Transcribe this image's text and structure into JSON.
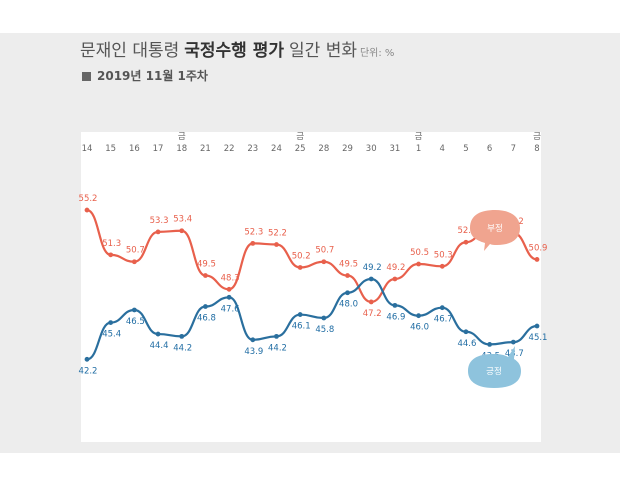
{
  "title": {
    "part1": "문재인 대통령",
    "part2": "국정수행 평가",
    "part3": "일간 변화",
    "unit": "단위: %"
  },
  "subtitle": "2019년 11월 1주차",
  "friday_label": "금",
  "colors": {
    "negative": "#e8604c",
    "positive": "#2a6f9e",
    "negative_label": "#e8604c",
    "positive_label": "#1f6ca3",
    "negative_bubble": "#f0a48f",
    "positive_bubble": "#8ec3dd"
  },
  "chart_data": {
    "type": "line",
    "categories": [
      "14",
      "15",
      "16",
      "17",
      "18",
      "21",
      "22",
      "23",
      "24",
      "25",
      "28",
      "29",
      "30",
      "31",
      "1",
      "4",
      "5",
      "6",
      "7",
      "8"
    ],
    "friday_markers": [
      4,
      9,
      14,
      19
    ],
    "ylim": [
      35,
      62
    ],
    "series": [
      {
        "name": "부정",
        "key": "negative",
        "values": [
          55.2,
          51.3,
          50.7,
          53.3,
          53.4,
          49.5,
          48.3,
          52.3,
          52.2,
          50.2,
          50.7,
          49.5,
          47.2,
          49.2,
          50.5,
          50.3,
          52.4,
          53.7,
          53.2,
          50.9
        ]
      },
      {
        "name": "긍정",
        "key": "positive",
        "values": [
          42.2,
          45.4,
          46.5,
          44.4,
          44.2,
          46.8,
          47.6,
          43.9,
          44.2,
          46.1,
          45.8,
          48.0,
          49.2,
          46.9,
          46.0,
          46.7,
          44.6,
          43.5,
          43.7,
          45.1
        ]
      }
    ]
  }
}
